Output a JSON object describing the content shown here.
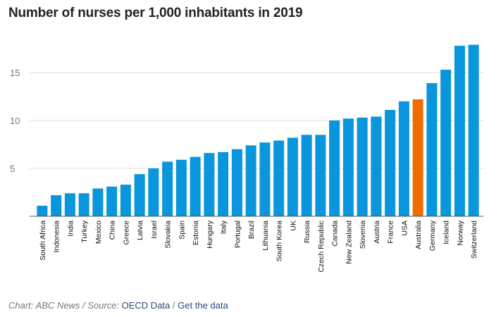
{
  "chart_data": {
    "type": "bar",
    "title": "Number of nurses per 1,000 inhabitants in 2019",
    "xlabel": "",
    "ylabel": "",
    "ylim": [
      0,
      18.5
    ],
    "yticks": [
      5,
      10,
      15
    ],
    "grid": true,
    "categories": [
      "South Africa",
      "Indonesia",
      "India",
      "Turkey",
      "Mexico",
      "China",
      "Greece",
      "Latvia",
      "Israel",
      "Slovakia",
      "Spain",
      "Estonia",
      "Hungary",
      "Italy",
      "Portugal",
      "Brazil",
      "Lithuania",
      "South Korea",
      "UK",
      "Russia",
      "Czech Republic",
      "Canada",
      "New Zealand",
      "Slovenia",
      "Austria",
      "France",
      "USA",
      "Australia",
      "Germany",
      "Iceland",
      "Norway",
      "Switzerland"
    ],
    "values": [
      1.1,
      2.2,
      2.4,
      2.4,
      2.9,
      3.1,
      3.3,
      4.4,
      5.0,
      5.7,
      5.9,
      6.2,
      6.6,
      6.7,
      7.0,
      7.4,
      7.7,
      7.9,
      8.2,
      8.5,
      8.5,
      10.0,
      10.2,
      10.3,
      10.4,
      11.1,
      12.0,
      12.2,
      13.9,
      15.3,
      17.8,
      17.9
    ],
    "highlight": "Australia",
    "colors": {
      "bar": "#0a96dc",
      "highlight": "#ef6c00",
      "grid": "#dddddd",
      "axis": "#555555"
    }
  },
  "footer": {
    "credit": "Chart: ABC News / Source:",
    "source_link": "OECD Data",
    "separator": "/",
    "data_link": "Get the data"
  }
}
